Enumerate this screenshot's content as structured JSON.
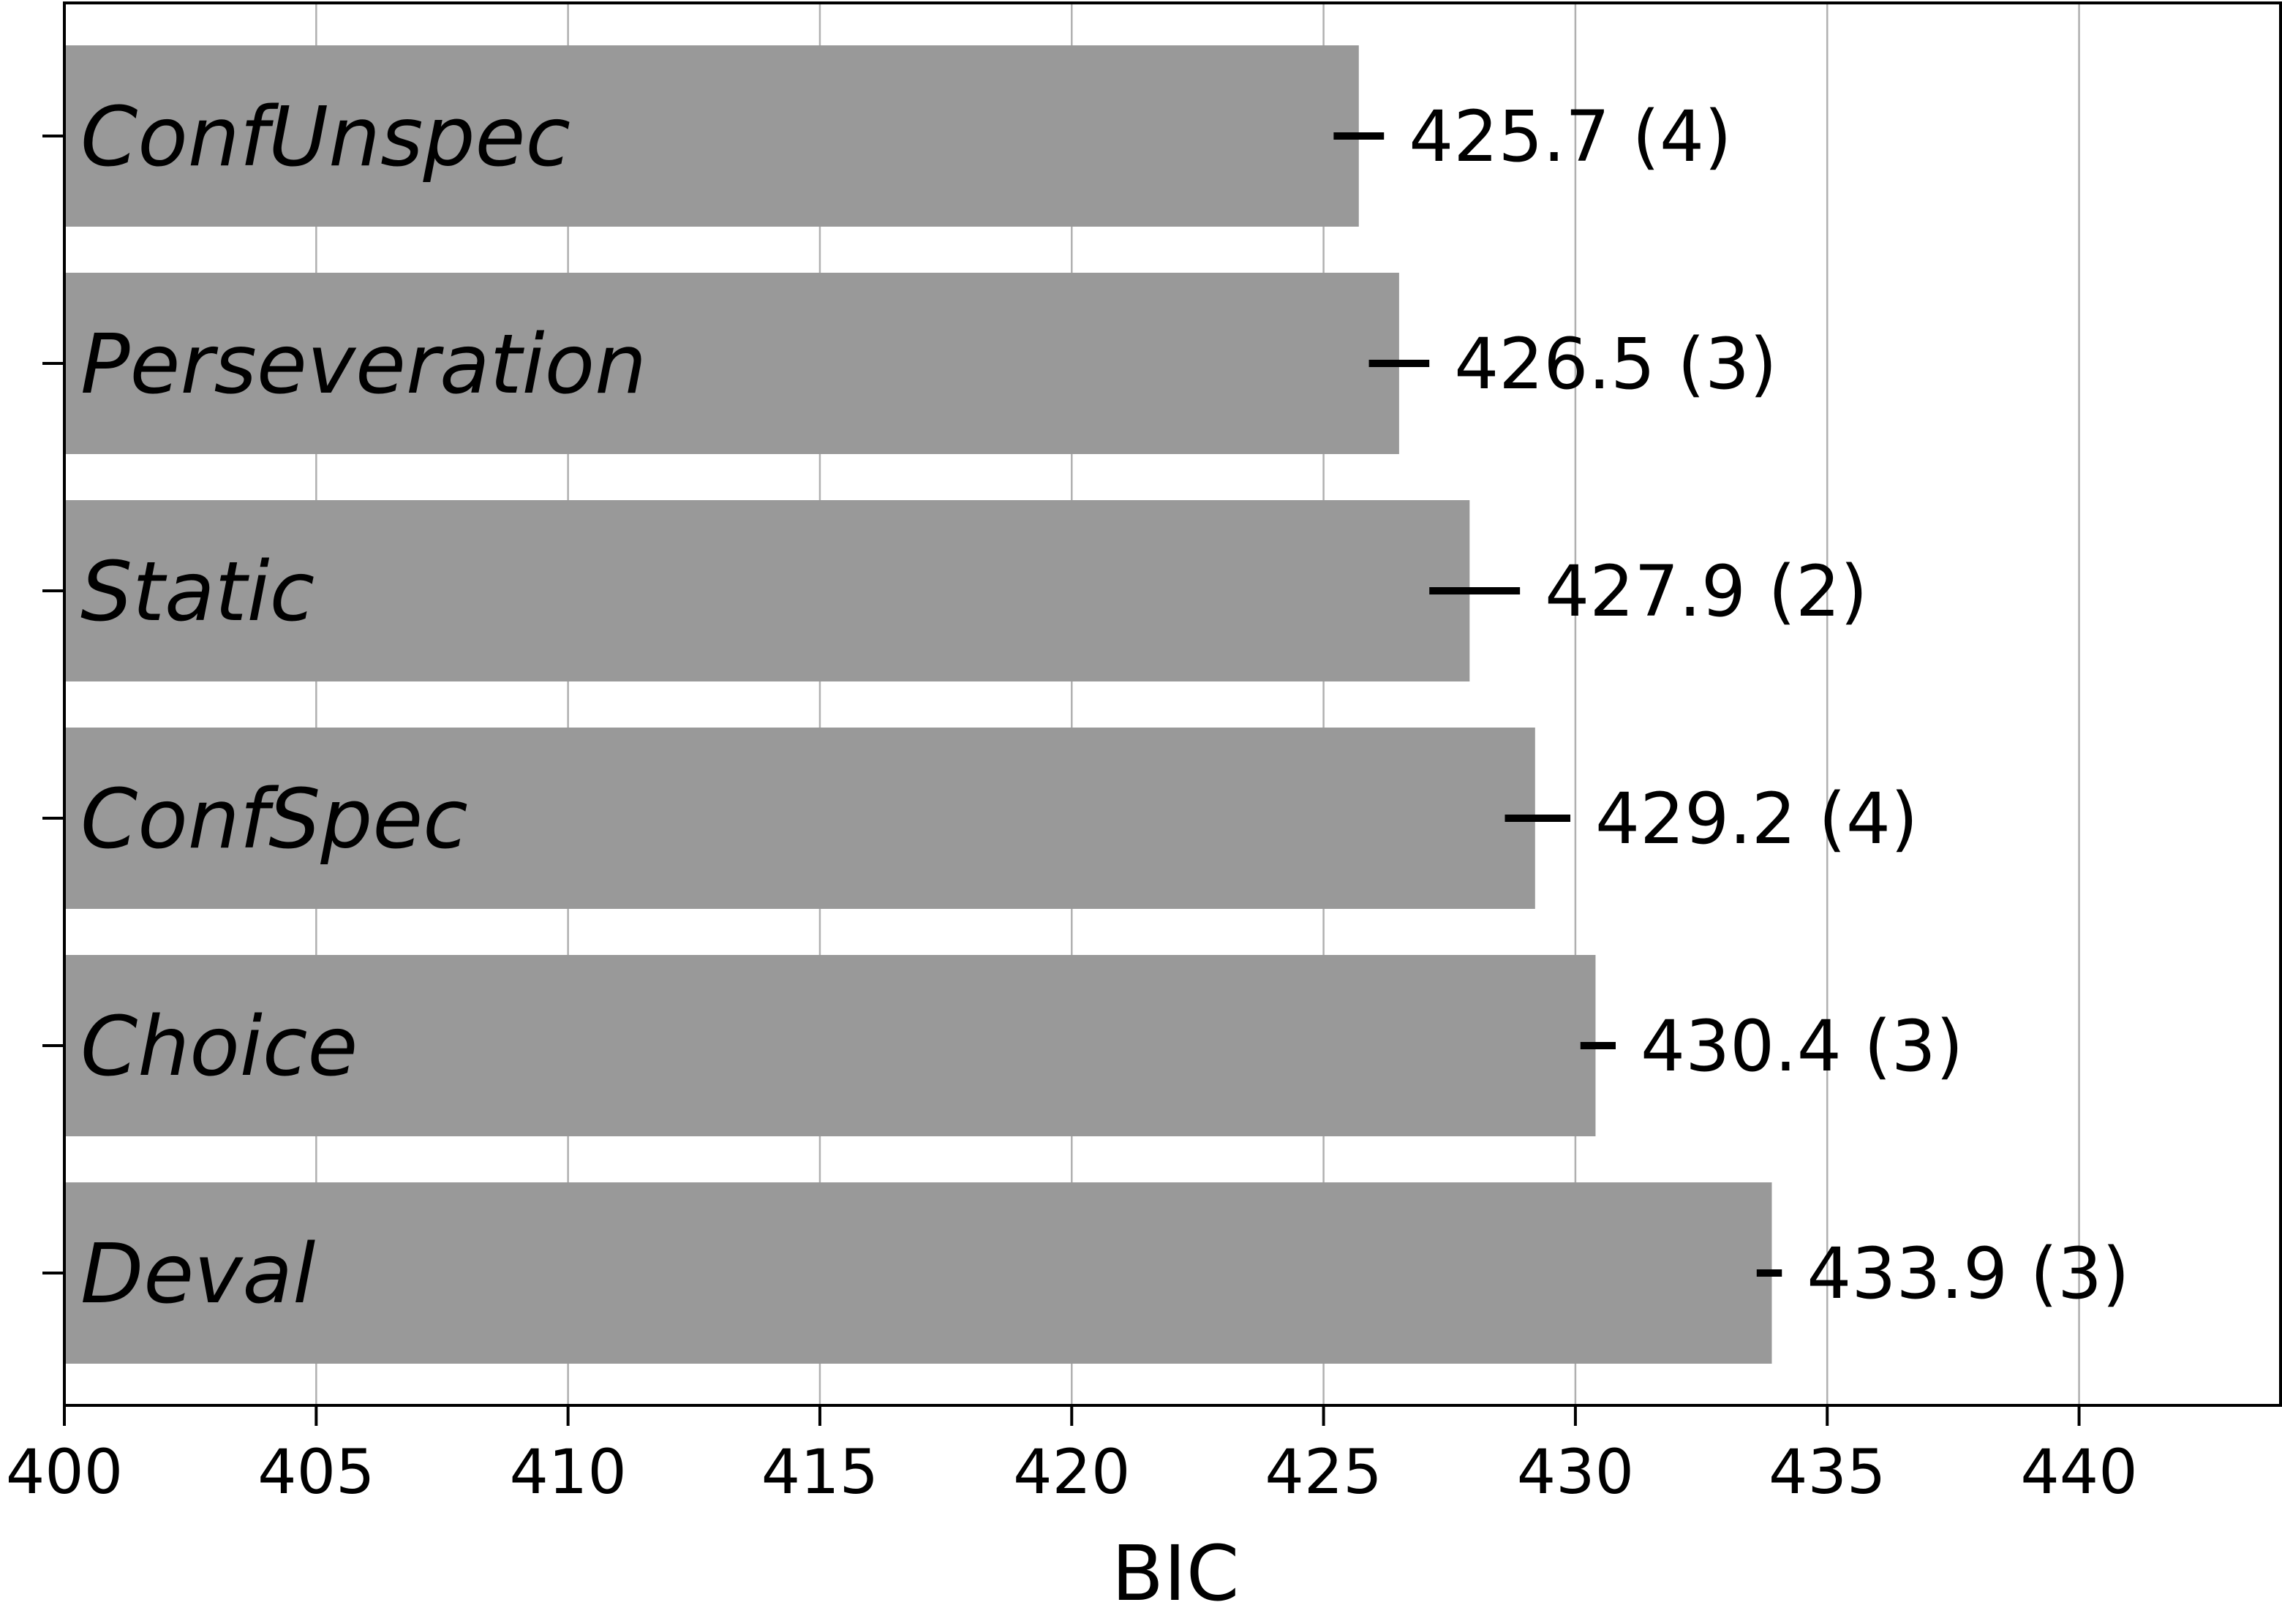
{
  "chart_data": {
    "type": "bar",
    "orientation": "horizontal",
    "categories": [
      "ConfUnspec",
      "Perseveration",
      "Static",
      "ConfSpec",
      "Choice",
      "Deval"
    ],
    "values": [
      425.7,
      426.5,
      427.9,
      429.2,
      430.4,
      433.9
    ],
    "error_low": [
      425.2,
      425.9,
      427.1,
      428.6,
      430.1,
      433.6
    ],
    "error_high": [
      426.2,
      427.1,
      428.9,
      429.9,
      430.8,
      434.1
    ],
    "value_labels": [
      "425.7 (4)",
      "426.5 (3)",
      "427.9 (2)",
      "429.2 (4)",
      "430.4 (3)",
      "433.9 (3)"
    ],
    "xlabel": "BIC",
    "ylabel": "",
    "title": "",
    "xlim": [
      400,
      444
    ],
    "xticks": [
      400,
      405,
      410,
      415,
      420,
      425,
      430,
      435,
      440
    ],
    "grid": "x",
    "bar_color": "#999999",
    "error_color": "#000000",
    "grid_color": "#b0b0b0"
  }
}
